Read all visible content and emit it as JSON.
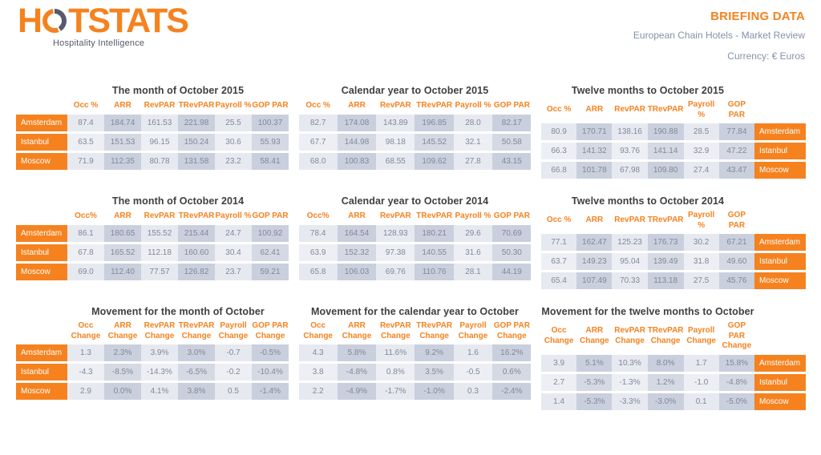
{
  "header": {
    "logo_pre": "H",
    "logo_post": "TSTATS",
    "tagline": "Hospitality Intelligence",
    "title": "BRIEFING DATA",
    "subtitle": "European Chain Hotels - Market Review",
    "currency": "Currency: € Euros"
  },
  "colors": {
    "accent_orange": "#f5821f",
    "logo_slate": "#565a6d",
    "subtitle_blue_gray": "#8592a8",
    "cell_light": "#e7e9f0",
    "cell_dark": "#c9cfdd",
    "cell_text": "#818896"
  },
  "tables": [
    {
      "id": "month-oct-2015",
      "title": "The month of October 2015",
      "label_side": "left",
      "columns": [
        "Occ %",
        "ARR",
        "RevPAR",
        "TRevPAR",
        "Payroll %",
        "GOP PAR"
      ],
      "rows": [
        {
          "city": "Amsterdam",
          "values": [
            "87.4",
            "184.74",
            "161.53",
            "221.98",
            "25.5",
            "100.37"
          ]
        },
        {
          "city": "Istanbul",
          "values": [
            "63.5",
            "151.53",
            "96.15",
            "150.24",
            "30.6",
            "55.93"
          ]
        },
        {
          "city": "Moscow",
          "values": [
            "71.9",
            "112.35",
            "80.78",
            "131.58",
            "23.2",
            "58.41"
          ]
        }
      ]
    },
    {
      "id": "calendar-2015",
      "title": "Calendar year to October 2015",
      "label_side": "none",
      "columns": [
        "Occ %",
        "ARR",
        "RevPAR",
        "TRevPAR",
        "Payroll %",
        "GOP PAR"
      ],
      "rows": [
        {
          "city": "Amsterdam",
          "values": [
            "82.7",
            "174.08",
            "143.89",
            "196.85",
            "28.0",
            "82.17"
          ]
        },
        {
          "city": "Istanbul",
          "values": [
            "67.7",
            "144.98",
            "98.18",
            "145.52",
            "32.1",
            "50.58"
          ]
        },
        {
          "city": "Moscow",
          "values": [
            "68.0",
            "100.83",
            "68.55",
            "109.62",
            "27.8",
            "43.15"
          ]
        }
      ]
    },
    {
      "id": "twelve-months-2015",
      "title": "Twelve months to October 2015",
      "label_side": "right",
      "columns": [
        "Occ %",
        "ARR",
        "RevPAR",
        "TRevPAR",
        "Payroll %",
        "GOP PAR"
      ],
      "rows": [
        {
          "city": "Amsterdam",
          "values": [
            "80.9",
            "170.71",
            "138.16",
            "190.88",
            "28.5",
            "77.84"
          ]
        },
        {
          "city": "Istanbul",
          "values": [
            "66.3",
            "141.32",
            "93.76",
            "141.14",
            "32.9",
            "47.22"
          ]
        },
        {
          "city": "Moscow",
          "values": [
            "66.8",
            "101.78",
            "67.98",
            "109.80",
            "27.4",
            "43.47"
          ]
        }
      ]
    },
    {
      "id": "month-oct-2014",
      "title": "The month of October 2014",
      "label_side": "left",
      "columns": [
        "Occ%",
        "ARR",
        "RevPAR",
        "TRevPAR",
        "Payroll %",
        "GOP PAR"
      ],
      "rows": [
        {
          "city": "Amsterdam",
          "values": [
            "86.1",
            "180.65",
            "155.52",
            "215.44",
            "24.7",
            "100.92"
          ]
        },
        {
          "city": "Istanbul",
          "values": [
            "67.8",
            "165.52",
            "112.18",
            "160.60",
            "30.4",
            "62.41"
          ]
        },
        {
          "city": "Moscow",
          "values": [
            "69.0",
            "112.40",
            "77.57",
            "126.82",
            "23.7",
            "59.21"
          ]
        }
      ]
    },
    {
      "id": "calendar-2014",
      "title": "Calendar year to October 2014",
      "label_side": "none",
      "columns": [
        "Occ%",
        "ARR",
        "RevPAR",
        "TRevPAR",
        "Payroll %",
        "GOP PAR"
      ],
      "rows": [
        {
          "city": "Amsterdam",
          "values": [
            "78.4",
            "164.54",
            "128.93",
            "180.21",
            "29.6",
            "70.69"
          ]
        },
        {
          "city": "Istanbul",
          "values": [
            "63.9",
            "152.32",
            "97.38",
            "140.55",
            "31.6",
            "50.30"
          ]
        },
        {
          "city": "Moscow",
          "values": [
            "65.8",
            "106.03",
            "69.76",
            "110.76",
            "28.1",
            "44.19"
          ]
        }
      ]
    },
    {
      "id": "twelve-months-2014",
      "title": "Twelve months to October 2014",
      "label_side": "right",
      "columns": [
        "Occ %",
        "ARR",
        "RevPAR",
        "TRevPAR",
        "Payroll %",
        "GOP PAR"
      ],
      "rows": [
        {
          "city": "Amsterdam",
          "values": [
            "77.1",
            "162.47",
            "125.23",
            "176.73",
            "30.2",
            "67.21"
          ]
        },
        {
          "city": "Istanbul",
          "values": [
            "63.7",
            "149.23",
            "95.04",
            "139.49",
            "31.8",
            "49.60"
          ]
        },
        {
          "city": "Moscow",
          "values": [
            "65.4",
            "107.49",
            "70.33",
            "113.18",
            "27.5",
            "45.76"
          ]
        }
      ]
    },
    {
      "id": "movement-month",
      "title": "Movement for the month of October",
      "label_side": "left",
      "columns": [
        "Occ\nChange",
        "ARR\nChange",
        "RevPAR\nChange",
        "TRevPAR\nChange",
        "Payroll\nChange",
        "GOP PAR\nChange"
      ],
      "rows": [
        {
          "city": "Amsterdam",
          "values": [
            "1.3",
            "2.3%",
            "3.9%",
            "3.0%",
            "-0.7",
            "-0.5%"
          ]
        },
        {
          "city": "Istanbul",
          "values": [
            "-4.3",
            "-8.5%",
            "-14.3%",
            "-6.5%",
            "-0.2",
            "-10.4%"
          ]
        },
        {
          "city": "Moscow",
          "values": [
            "2.9",
            "0.0%",
            "4.1%",
            "3.8%",
            "0.5",
            "-1.4%"
          ]
        }
      ]
    },
    {
      "id": "movement-calendar",
      "title": "Movement for the calendar year to October",
      "label_side": "none",
      "columns": [
        "Occ\nChange",
        "ARR\nChange",
        "RevPAR\nChange",
        "TRevPAR\nChange",
        "Payroll\nChange",
        "GOP PAR\nChange"
      ],
      "rows": [
        {
          "city": "Amsterdam",
          "values": [
            "4.3",
            "5.8%",
            "11.6%",
            "9.2%",
            "1.6",
            "16.2%"
          ]
        },
        {
          "city": "Istanbul",
          "values": [
            "3.8",
            "-4.8%",
            "0.8%",
            "3.5%",
            "-0.5",
            "0.6%"
          ]
        },
        {
          "city": "Moscow",
          "values": [
            "2.2",
            "-4.9%",
            "-1.7%",
            "-1.0%",
            "0.3",
            "-2.4%"
          ]
        }
      ]
    },
    {
      "id": "movement-twelve-months",
      "title": "Movement for the twelve months to October",
      "label_side": "right",
      "columns": [
        "Occ Change",
        "ARR\nChange",
        "RevPAR\nChange",
        "TRevPAR\nChange",
        "Payroll\nChange",
        "GOP PAR\nChange"
      ],
      "rows": [
        {
          "city": "Amsterdam",
          "values": [
            "3.9",
            "5.1%",
            "10.3%",
            "8.0%",
            "1.7",
            "15.8%"
          ]
        },
        {
          "city": "Istanbul",
          "values": [
            "2.7",
            "-5.3%",
            "-1.3%",
            "1.2%",
            "-1.0",
            "-4.8%"
          ]
        },
        {
          "city": "Moscow",
          "values": [
            "1.4",
            "-5.3%",
            "-3.3%",
            "-3.0%",
            "0.1",
            "-5.0%"
          ]
        }
      ]
    }
  ]
}
